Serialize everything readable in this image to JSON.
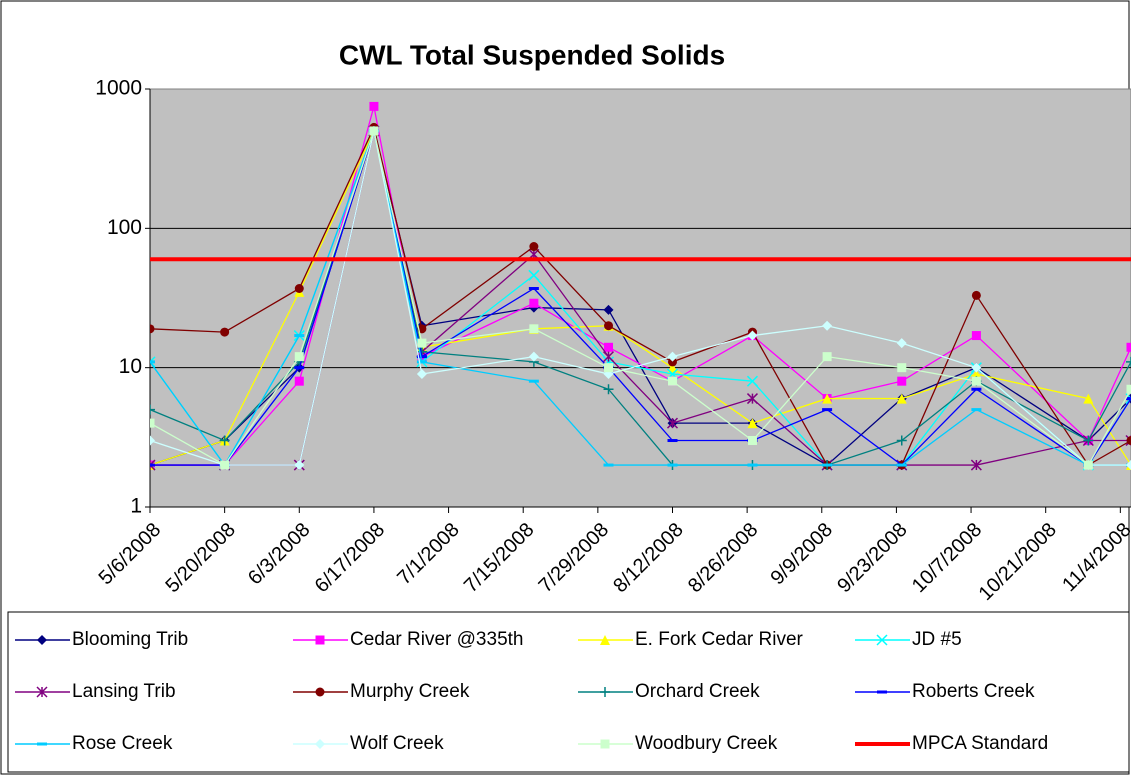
{
  "chart_data": {
    "type": "line",
    "title": "CWL Total Suspended Solids",
    "log_scale": true,
    "grid": true,
    "legend": "bottom",
    "ylim": [
      1,
      1000
    ],
    "yticks": [
      1,
      10,
      100,
      1000
    ],
    "xlim": [
      "5/6/2008",
      "11/6/2008"
    ],
    "xticks": [
      "5/6/2008",
      "5/20/2008",
      "6/3/2008",
      "6/17/2008",
      "7/1/2008",
      "7/15/2008",
      "7/29/2008",
      "8/12/2008",
      "8/26/2008",
      "9/9/2008",
      "9/23/2008",
      "10/7/2008",
      "10/21/2008",
      "11/4/2008"
    ],
    "x": [
      "5/6/2008",
      "5/20/2008",
      "6/3/2008",
      "6/17/2008",
      "6/26/2008",
      "7/17/2008",
      "7/31/2008",
      "8/12/2008",
      "8/27/2008",
      "9/10/2008",
      "9/24/2008",
      "10/8/2008",
      "10/29/2008",
      "11/6/2008"
    ],
    "series": [
      {
        "name": "Blooming Trib",
        "color": "#000080",
        "marker": "diamond",
        "values": [
          2,
          3,
          10,
          500,
          20,
          27,
          26,
          4,
          4,
          2,
          6,
          10,
          3,
          6
        ]
      },
      {
        "name": "Cedar River @335th",
        "color": "#ff00ff",
        "marker": "square",
        "values": [
          2,
          2,
          8,
          750,
          12,
          29,
          14,
          8,
          17,
          6,
          8,
          17,
          3,
          14
        ]
      },
      {
        "name": "E. Fork Cedar River",
        "color": "#ffff00",
        "marker": "triangle",
        "values": [
          2,
          3,
          35,
          500,
          14,
          19,
          20,
          10,
          4,
          6,
          6,
          9,
          6,
          2
        ]
      },
      {
        "name": "JD #5",
        "color": "#00ffff",
        "marker": "x",
        "values": [
          11,
          2,
          17,
          500,
          11,
          46,
          11,
          9,
          8,
          2,
          2,
          10,
          2,
          6
        ]
      },
      {
        "name": "Lansing Trib",
        "color": "#800080",
        "marker": "star",
        "values": [
          2,
          2,
          2,
          500,
          13,
          65,
          12,
          4,
          6,
          2,
          2,
          2,
          3,
          3
        ]
      },
      {
        "name": "Murphy Creek",
        "color": "#800000",
        "marker": "circle",
        "values": [
          19,
          18,
          37,
          530,
          19,
          74,
          20,
          11,
          18,
          2,
          2,
          33,
          2,
          3
        ]
      },
      {
        "name": "Orchard Creek",
        "color": "#008080",
        "marker": "plus",
        "values": [
          5,
          3,
          11,
          500,
          13,
          11,
          7,
          2,
          2,
          2,
          3,
          8,
          3,
          11
        ]
      },
      {
        "name": "Roberts Creek",
        "color": "#0000ff",
        "marker": "dash",
        "values": [
          2,
          2,
          10,
          500,
          12,
          37,
          10,
          3,
          3,
          5,
          2,
          7,
          2,
          6
        ]
      },
      {
        "name": "Rose Creek",
        "color": "#00ccff",
        "marker": "dash",
        "values": [
          11,
          2,
          17,
          500,
          11,
          8,
          2,
          2,
          2,
          2,
          2,
          5,
          2,
          2
        ]
      },
      {
        "name": "Wolf Creek",
        "color": "#ccffff",
        "marker": "diamond",
        "values": [
          3,
          2,
          2,
          500,
          9,
          12,
          9,
          12,
          17,
          20,
          15,
          10,
          2,
          2
        ]
      },
      {
        "name": "Woodbury Creek",
        "color": "#ccffcc",
        "marker": "square",
        "values": [
          4,
          2,
          12,
          500,
          15,
          19,
          10,
          8,
          3,
          12,
          10,
          8,
          2,
          7
        ]
      }
    ],
    "threshold": {
      "name": "MPCA Standard",
      "color": "#ff0000",
      "value": 60
    }
  }
}
